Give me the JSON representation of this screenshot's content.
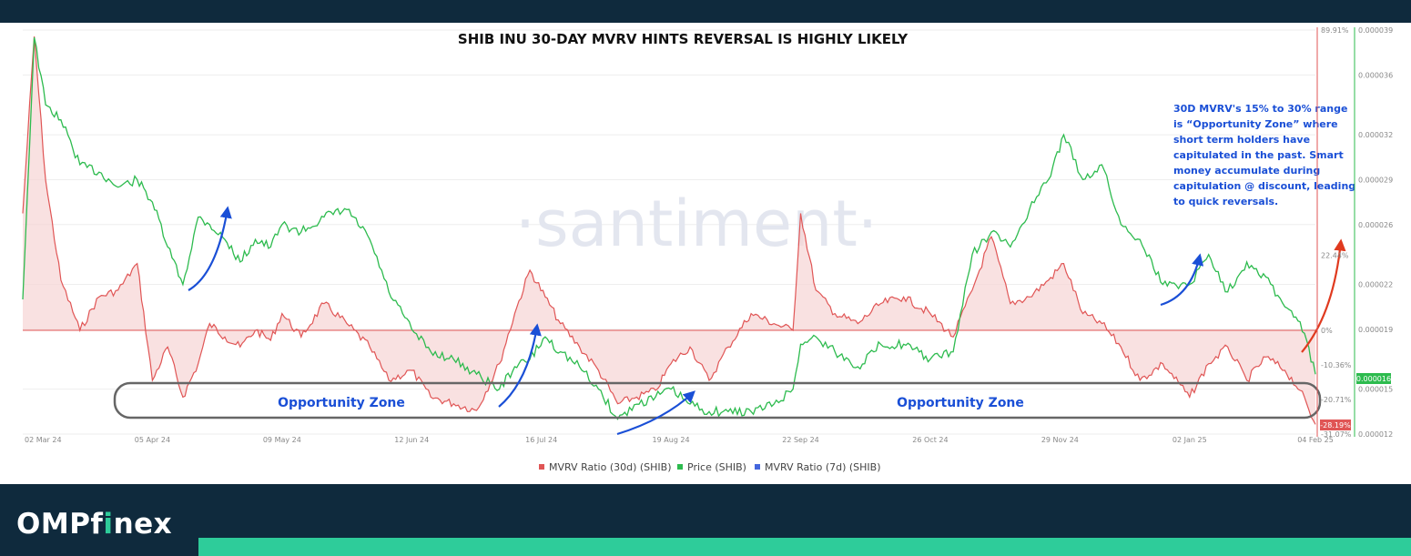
{
  "chart_data": {
    "type": "line",
    "title": "SHIB INU 30-DAY MVRV HINTS REVERSAL IS HIGHLY LIKELY",
    "watermark": "·santiment·",
    "x_ticks": [
      "02 Mar 24",
      "05 Apr 24",
      "09 May 24",
      "12 Jun 24",
      "16 Jul 24",
      "19 Aug 24",
      "22 Sep 24",
      "26 Oct 24",
      "29 Nov 24",
      "02 Jan 25",
      "04 Feb 25"
    ],
    "mvrv_axis_ticks": [
      "89.91%",
      "22.44%",
      "0%",
      "-10.36%",
      "-20.71%",
      "-31.07%"
    ],
    "price_axis_ticks": [
      "0.000039",
      "0.000036",
      "0.000032",
      "0.000029",
      "0.000026",
      "0.000022",
      "0.000019",
      "0.000015",
      "0.000012"
    ],
    "current_price_label": "0.000016",
    "current_mvrv_label": "-28.19%",
    "legend": [
      {
        "name": "MVRV Ratio (30d) (SHIB)",
        "color": "#e05555"
      },
      {
        "name": "Price (SHIB)",
        "color": "#2dbb4e"
      },
      {
        "name": "MVRV Ratio (7d) (SHIB)",
        "color": "#4466dd"
      }
    ],
    "series": [
      {
        "name": "Price (SHIB)",
        "unit": "USD",
        "x": [
          "2024-03-02",
          "2024-03-05",
          "2024-03-08",
          "2024-03-12",
          "2024-03-17",
          "2024-03-22",
          "2024-03-27",
          "2024-04-01",
          "2024-04-05",
          "2024-04-09",
          "2024-04-13",
          "2024-04-17",
          "2024-04-20",
          "2024-04-24",
          "2024-04-28",
          "2024-05-02",
          "2024-05-06",
          "2024-05-09",
          "2024-05-14",
          "2024-05-20",
          "2024-05-26",
          "2024-06-01",
          "2024-06-06",
          "2024-06-12",
          "2024-06-17",
          "2024-06-23",
          "2024-06-29",
          "2024-07-05",
          "2024-07-09",
          "2024-07-13",
          "2024-07-17",
          "2024-07-21",
          "2024-07-26",
          "2024-07-31",
          "2024-08-05",
          "2024-08-10",
          "2024-08-15",
          "2024-08-19",
          "2024-08-24",
          "2024-08-29",
          "2024-09-03",
          "2024-09-09",
          "2024-09-15",
          "2024-09-20",
          "2024-09-22",
          "2024-09-26",
          "2024-10-01",
          "2024-10-07",
          "2024-10-13",
          "2024-10-19",
          "2024-10-26",
          "2024-11-01",
          "2024-11-06",
          "2024-11-11",
          "2024-11-16",
          "2024-11-21",
          "2024-11-26",
          "2024-11-30",
          "2024-12-05",
          "2024-12-10",
          "2024-12-15",
          "2024-12-20",
          "2024-12-26",
          "2025-01-02",
          "2025-01-07",
          "2025-01-12",
          "2025-01-17",
          "2025-01-22",
          "2025-01-27",
          "2025-01-31",
          "2025-02-04"
        ],
        "values": [
          2.1e-05,
          3.85e-05,
          3.4e-05,
          3.3e-05,
          3e-05,
          2.95e-05,
          2.85e-05,
          2.9e-05,
          2.75e-05,
          2.45e-05,
          2.2e-05,
          2.65e-05,
          2.6e-05,
          2.5e-05,
          2.35e-05,
          2.5e-05,
          2.45e-05,
          2.6e-05,
          2.55e-05,
          2.65e-05,
          2.7e-05,
          2.5e-05,
          2.15e-05,
          1.9e-05,
          1.75e-05,
          1.7e-05,
          1.6e-05,
          1.5e-05,
          1.65e-05,
          1.7e-05,
          1.85e-05,
          1.75e-05,
          1.65e-05,
          1.5e-05,
          1.3e-05,
          1.4e-05,
          1.45e-05,
          1.5e-05,
          1.4e-05,
          1.35e-05,
          1.35e-05,
          1.35e-05,
          1.4e-05,
          1.5e-05,
          1.8e-05,
          1.85e-05,
          1.75e-05,
          1.65e-05,
          1.8e-05,
          1.8e-05,
          1.7e-05,
          1.75e-05,
          2.4e-05,
          2.55e-05,
          2.45e-05,
          2.7e-05,
          2.9e-05,
          3.2e-05,
          2.9e-05,
          3e-05,
          2.6e-05,
          2.5e-05,
          2.2e-05,
          2.2e-05,
          2.4e-05,
          2.15e-05,
          2.35e-05,
          2.25e-05,
          2.05e-05,
          1.95e-05,
          1.6e-05
        ]
      },
      {
        "name": "MVRV Ratio (30d) (SHIB)",
        "unit": "%",
        "x": [
          "2024-03-02",
          "2024-03-05",
          "2024-03-08",
          "2024-03-12",
          "2024-03-17",
          "2024-03-22",
          "2024-03-27",
          "2024-04-01",
          "2024-04-05",
          "2024-04-09",
          "2024-04-13",
          "2024-04-17",
          "2024-04-20",
          "2024-04-24",
          "2024-04-28",
          "2024-05-02",
          "2024-05-06",
          "2024-05-09",
          "2024-05-14",
          "2024-05-20",
          "2024-05-26",
          "2024-06-01",
          "2024-06-06",
          "2024-06-12",
          "2024-06-17",
          "2024-06-23",
          "2024-06-29",
          "2024-07-05",
          "2024-07-09",
          "2024-07-13",
          "2024-07-17",
          "2024-07-21",
          "2024-07-26",
          "2024-07-31",
          "2024-08-05",
          "2024-08-10",
          "2024-08-15",
          "2024-08-19",
          "2024-08-24",
          "2024-08-29",
          "2024-09-03",
          "2024-09-09",
          "2024-09-15",
          "2024-09-20",
          "2024-09-22",
          "2024-09-26",
          "2024-10-01",
          "2024-10-07",
          "2024-10-13",
          "2024-10-19",
          "2024-10-26",
          "2024-11-01",
          "2024-11-06",
          "2024-11-11",
          "2024-11-16",
          "2024-11-21",
          "2024-11-26",
          "2024-11-30",
          "2024-12-05",
          "2024-12-10",
          "2024-12-15",
          "2024-12-20",
          "2024-12-26",
          "2025-01-02",
          "2025-01-07",
          "2025-01-12",
          "2025-01-17",
          "2025-01-22",
          "2025-01-27",
          "2025-01-31",
          "2025-02-04"
        ],
        "values": [
          35,
          88,
          45,
          15,
          0,
          10,
          12,
          20,
          -15,
          -5,
          -20,
          -10,
          2,
          -2,
          -5,
          0,
          -3,
          5,
          -2,
          8,
          2,
          -5,
          -15,
          -12,
          -20,
          -22,
          -24,
          -10,
          5,
          18,
          10,
          2,
          -5,
          -12,
          -22,
          -20,
          -18,
          -10,
          -5,
          -15,
          -5,
          5,
          2,
          0,
          35,
          12,
          5,
          2,
          8,
          10,
          5,
          -2,
          12,
          28,
          8,
          10,
          15,
          20,
          5,
          2,
          -5,
          -15,
          -10,
          -20,
          -10,
          -5,
          -15,
          -8,
          -12,
          -18,
          -28.19
        ]
      },
      {
        "name": "MVRV Ratio (7d) (SHIB)",
        "values": []
      }
    ],
    "annotations": [
      {
        "text": "Opportunity Zone",
        "range_pct": [
          -15,
          -30
        ]
      },
      {
        "text": "Opportunity Zone",
        "range_pct": [
          -15,
          -30
        ]
      }
    ],
    "note_lines": [
      "30D MVRV's 15% to 30% range",
      "is “Opportunity Zone” where",
      "short term holders have",
      "capitulated in the past. Smart",
      "money accumulate during",
      "capitulation @ discount, leading",
      "to quick reversals."
    ],
    "xlim": [
      "2024-03-02",
      "2025-02-04"
    ],
    "price_ylim": [
      1.2e-05,
      3.9e-05
    ],
    "mvrv_ylim": [
      -31.07,
      89.91
    ],
    "grid": true,
    "legend_position": "bottom"
  },
  "brand": {
    "pre": "OMPf",
    "accent": "i",
    "post": "nex"
  },
  "colors": {
    "mvrv": "#e05555",
    "price": "#2dbb4e",
    "mvrv7d": "#4466dd",
    "zone": "#666666",
    "annotation": "#1a4fd6",
    "arrow_up": "#e03a1f",
    "navy": "#0f2a3d",
    "teal": "#2ecc9a"
  }
}
